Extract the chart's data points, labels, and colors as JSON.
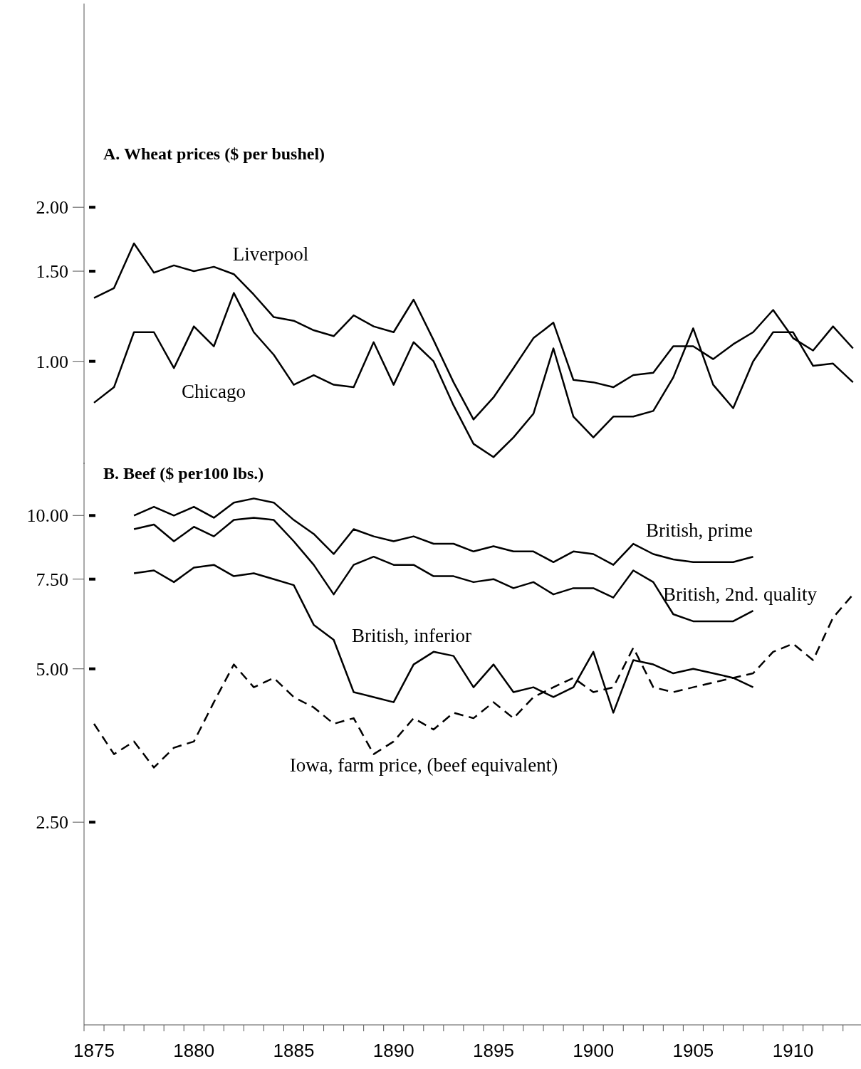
{
  "chart_data": [
    {
      "type": "line",
      "title": "A. Wheat prices ($ per bushel)",
      "log": true,
      "tick_labels": "y",
      "xlim": [
        1874.5,
        1913.4
      ],
      "ylim": [
        0.63,
        5
      ],
      "yticks": [
        {
          "value": 1,
          "label": "1.00"
        },
        {
          "value": 1.5,
          "label": "1.50"
        },
        {
          "value": 2,
          "label": "2.00"
        }
      ],
      "x": [
        1875,
        1876,
        1877,
        1878,
        1879,
        1880,
        1881,
        1882,
        1883,
        1884,
        1885,
        1886,
        1887,
        1888,
        1889,
        1890,
        1891,
        1892,
        1893,
        1894,
        1895,
        1896,
        1897,
        1898,
        1899,
        1900,
        1901,
        1902,
        1903,
        1904,
        1905,
        1906,
        1907,
        1908,
        1909,
        1910,
        1911,
        1912,
        1913
      ],
      "series": [
        {
          "name": "Liverpool",
          "color": "#000000",
          "line_style": "solid",
          "values": [
            1.33,
            1.39,
            1.7,
            1.49,
            1.54,
            1.5,
            1.53,
            1.48,
            1.35,
            1.22,
            1.2,
            1.15,
            1.12,
            1.23,
            1.17,
            1.14,
            1.32,
            1.1,
            0.91,
            0.77,
            0.85,
            0.97,
            1.11,
            1.19,
            0.92,
            0.91,
            0.89,
            0.94,
            0.95,
            1.07,
            1.07,
            1.01,
            1.08,
            1.14,
            1.26,
            1.11,
            1.05,
            1.17,
            1.06
          ]
        },
        {
          "name": "Chicago",
          "color": "#000000",
          "line_style": "solid",
          "values": [
            0.83,
            0.89,
            1.14,
            1.14,
            0.97,
            1.17,
            1.07,
            1.36,
            1.14,
            1.03,
            0.9,
            0.94,
            0.9,
            0.89,
            1.09,
            0.9,
            1.09,
            1.0,
            0.82,
            0.69,
            0.65,
            0.71,
            0.79,
            1.06,
            0.78,
            0.71,
            0.78,
            0.78,
            0.8,
            0.93,
            1.16,
            0.9,
            0.81,
            1.0,
            1.14,
            1.14,
            0.98,
            0.99,
            0.91
          ]
        }
      ]
    },
    {
      "type": "line",
      "title": "B. Beef ($ per100 lbs.)",
      "log": true,
      "xlim": [
        1874.5,
        1913.4
      ],
      "ylim": [
        1,
        12.7
      ],
      "yticks": [
        {
          "value": 2.5,
          "label": "2.50"
        },
        {
          "value": 5,
          "label": "5.00"
        },
        {
          "value": 7.5,
          "label": "7.50"
        },
        {
          "value": 10,
          "label": "10.00"
        }
      ],
      "xticks": [
        {
          "value": 1874.5,
          "label": null
        },
        {
          "value": 1875,
          "label": "1875"
        },
        {
          "value": 1875.5,
          "label": null
        },
        {
          "value": 1876.5,
          "label": null
        },
        {
          "value": 1877.5,
          "label": null
        },
        {
          "value": 1878.5,
          "label": null
        },
        {
          "value": 1879.5,
          "label": null
        },
        {
          "value": 1880,
          "label": "1880"
        },
        {
          "value": 1880.5,
          "label": null
        },
        {
          "value": 1881.5,
          "label": null
        },
        {
          "value": 1882.5,
          "label": null
        },
        {
          "value": 1883.5,
          "label": null
        },
        {
          "value": 1884.5,
          "label": null
        },
        {
          "value": 1885,
          "label": "1885"
        },
        {
          "value": 1885.5,
          "label": null
        },
        {
          "value": 1886.5,
          "label": null
        },
        {
          "value": 1887.5,
          "label": null
        },
        {
          "value": 1888.5,
          "label": null
        },
        {
          "value": 1889.5,
          "label": null
        },
        {
          "value": 1890,
          "label": "1890"
        },
        {
          "value": 1890.5,
          "label": null
        },
        {
          "value": 1891.5,
          "label": null
        },
        {
          "value": 1892.5,
          "label": null
        },
        {
          "value": 1893.5,
          "label": null
        },
        {
          "value": 1894.5,
          "label": null
        },
        {
          "value": 1895,
          "label": "1895"
        },
        {
          "value": 1895.5,
          "label": null
        },
        {
          "value": 1896.5,
          "label": null
        },
        {
          "value": 1897.5,
          "label": null
        },
        {
          "value": 1898.5,
          "label": null
        },
        {
          "value": 1899.5,
          "label": null
        },
        {
          "value": 1900,
          "label": "1900"
        },
        {
          "value": 1900.5,
          "label": null
        },
        {
          "value": 1901.5,
          "label": null
        },
        {
          "value": 1902.5,
          "label": null
        },
        {
          "value": 1903.5,
          "label": null
        },
        {
          "value": 1904.5,
          "label": null
        },
        {
          "value": 1905,
          "label": "1905"
        },
        {
          "value": 1905.5,
          "label": null
        },
        {
          "value": 1906.5,
          "label": null
        },
        {
          "value": 1907.5,
          "label": null
        },
        {
          "value": 1908.5,
          "label": null
        },
        {
          "value": 1909.5,
          "label": null
        },
        {
          "value": 1910,
          "label": "1910"
        },
        {
          "value": 1910.5,
          "label": null
        },
        {
          "value": 1911.5,
          "label": null
        },
        {
          "value": 1912.5,
          "label": null
        }
      ],
      "x": [
        1875,
        1876,
        1877,
        1878,
        1879,
        1880,
        1881,
        1882,
        1883,
        1884,
        1885,
        1886,
        1887,
        1888,
        1889,
        1890,
        1891,
        1892,
        1893,
        1894,
        1895,
        1896,
        1897,
        1898,
        1899,
        1900,
        1901,
        1902,
        1903,
        1904,
        1905,
        1906,
        1907,
        1908,
        1909,
        1910,
        1911,
        1912,
        1913
      ],
      "series": [
        {
          "name": "British, prime",
          "color": "#000000",
          "line_style": "solid",
          "values": [
            null,
            null,
            10.0,
            10.4,
            10.0,
            10.4,
            9.9,
            10.6,
            10.8,
            10.6,
            9.8,
            9.2,
            8.4,
            9.4,
            9.1,
            8.9,
            9.1,
            8.8,
            8.8,
            8.5,
            8.7,
            8.5,
            8.5,
            8.1,
            8.5,
            8.4,
            8.0,
            8.8,
            8.4,
            8.2,
            8.1,
            8.1,
            8.1,
            8.3,
            null,
            null,
            null,
            null,
            null
          ]
        },
        {
          "name": "British, 2nd. quality",
          "color": "#000000",
          "line_style": "solid",
          "values": [
            null,
            null,
            9.4,
            9.6,
            8.9,
            9.5,
            9.1,
            9.8,
            9.9,
            9.8,
            8.9,
            8.0,
            7.0,
            8.0,
            8.3,
            8.0,
            8.0,
            7.6,
            7.6,
            7.4,
            7.5,
            7.2,
            7.4,
            7.0,
            7.2,
            7.2,
            6.9,
            7.8,
            7.4,
            6.4,
            6.2,
            6.2,
            6.2,
            6.5,
            null,
            null,
            null,
            null,
            null
          ]
        },
        {
          "name": "British, inferior",
          "color": "#000000",
          "line_style": "solid",
          "values": [
            null,
            null,
            7.7,
            7.8,
            7.4,
            7.9,
            8.0,
            7.6,
            7.7,
            7.5,
            7.3,
            6.1,
            5.7,
            4.5,
            4.4,
            4.3,
            5.1,
            5.4,
            5.3,
            4.6,
            5.1,
            4.5,
            4.6,
            4.4,
            4.6,
            5.4,
            4.1,
            5.2,
            5.1,
            4.9,
            5.0,
            4.9,
            4.8,
            4.6,
            null,
            null,
            null,
            null,
            null
          ]
        },
        {
          "name": "Iowa, farm price, (beef equivalent)",
          "color": "#000000",
          "line_style": "dashed",
          "values": [
            3.9,
            3.4,
            3.6,
            3.2,
            3.5,
            3.6,
            4.3,
            5.1,
            4.6,
            4.8,
            4.4,
            4.2,
            3.9,
            4.0,
            3.4,
            3.6,
            4.0,
            3.8,
            4.1,
            4.0,
            4.3,
            4.0,
            4.4,
            4.6,
            4.8,
            4.5,
            4.6,
            5.5,
            4.6,
            4.5,
            4.6,
            4.7,
            4.8,
            4.9,
            5.4,
            5.6,
            5.2,
            6.3,
            7.0
          ]
        }
      ]
    }
  ]
}
